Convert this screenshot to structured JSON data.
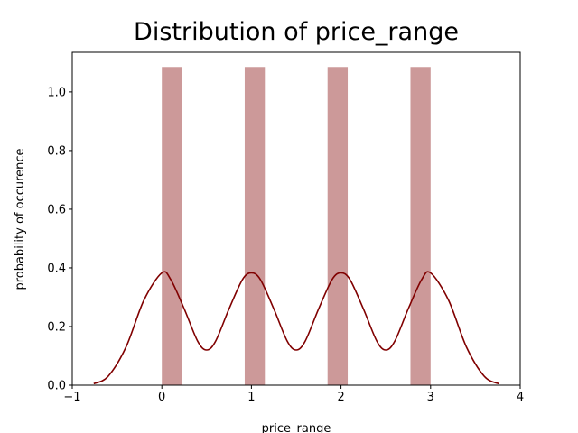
{
  "chart_data": {
    "type": "bar",
    "title": "Distribution of price_range",
    "xlabel": "price_range",
    "ylabel": "probability of occurence",
    "xlim": [
      -1,
      4
    ],
    "ylim": [
      0,
      1.135
    ],
    "x_ticks": [
      "−1",
      "0",
      "1",
      "2",
      "3",
      "4"
    ],
    "y_ticks": [
      "0.0",
      "0.2",
      "0.4",
      "0.6",
      "0.8",
      "1.0"
    ],
    "bars": [
      {
        "x_start": 0.0,
        "x_end": 0.225,
        "value": 1.085
      },
      {
        "x_start": 0.925,
        "x_end": 1.15,
        "value": 1.085
      },
      {
        "x_start": 1.85,
        "x_end": 2.075,
        "value": 1.085
      },
      {
        "x_start": 2.775,
        "x_end": 3.0,
        "value": 1.085
      }
    ],
    "kde": {
      "x": [
        -0.76,
        -0.6,
        -0.4,
        -0.2,
        0.0,
        0.1,
        0.25,
        0.4,
        0.5,
        0.6,
        0.75,
        0.9,
        1.0,
        1.1,
        1.25,
        1.4,
        1.5,
        1.6,
        1.75,
        1.9,
        2.0,
        2.1,
        2.25,
        2.4,
        2.5,
        2.6,
        2.75,
        2.9,
        3.0,
        3.2,
        3.4,
        3.6,
        3.76
      ],
      "y": [
        0.005,
        0.03,
        0.13,
        0.29,
        0.383,
        0.36,
        0.26,
        0.15,
        0.12,
        0.15,
        0.26,
        0.36,
        0.383,
        0.36,
        0.26,
        0.15,
        0.12,
        0.15,
        0.26,
        0.36,
        0.383,
        0.36,
        0.26,
        0.15,
        0.12,
        0.15,
        0.26,
        0.36,
        0.383,
        0.29,
        0.13,
        0.03,
        0.005
      ]
    },
    "colors": {
      "bar": "#cc9999",
      "line": "#800000"
    },
    "grid": false,
    "legend": "none"
  }
}
